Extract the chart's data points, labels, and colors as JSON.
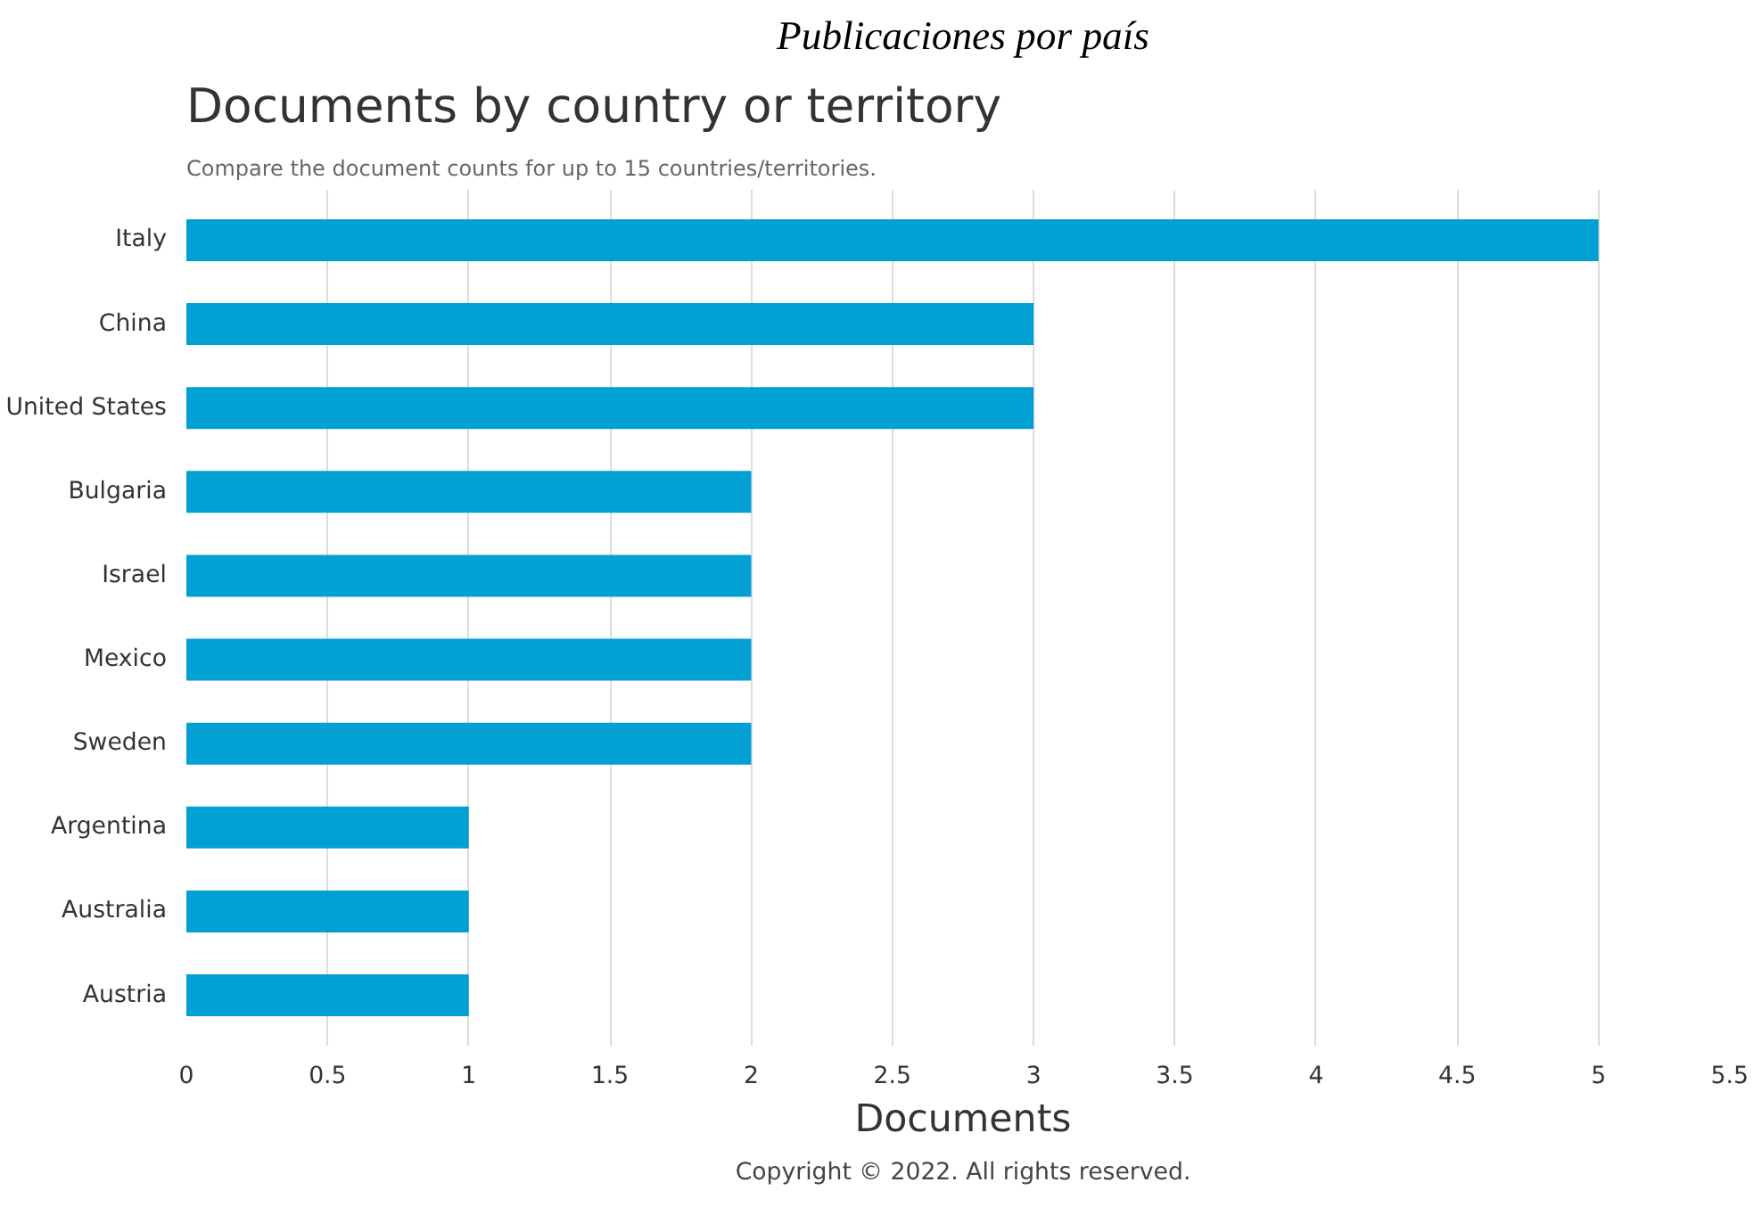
{
  "chart_data": {
    "type": "bar",
    "orientation": "horizontal",
    "title": "Documents by country or territory",
    "subtitle": "Compare the document counts for up to 15 countries/territories.",
    "xlabel": "Documents",
    "annotations": [
      "Publicaciones por país",
      "Copyright © 2022. All rights reserved."
    ],
    "categories": [
      "Italy",
      "China",
      "United States",
      "Bulgaria",
      "Israel",
      "Mexico",
      "Sweden",
      "Argentina",
      "Australia",
      "Austria"
    ],
    "values": [
      5,
      3,
      3,
      2,
      2,
      2,
      2,
      1,
      1,
      1
    ],
    "color": "#00a0d2",
    "xlim": [
      0,
      5.5
    ],
    "xticks": [
      0,
      0.5,
      1,
      1.5,
      2,
      2.5,
      3,
      3.5,
      4,
      4.5,
      5,
      5.5
    ],
    "grid": "x"
  }
}
